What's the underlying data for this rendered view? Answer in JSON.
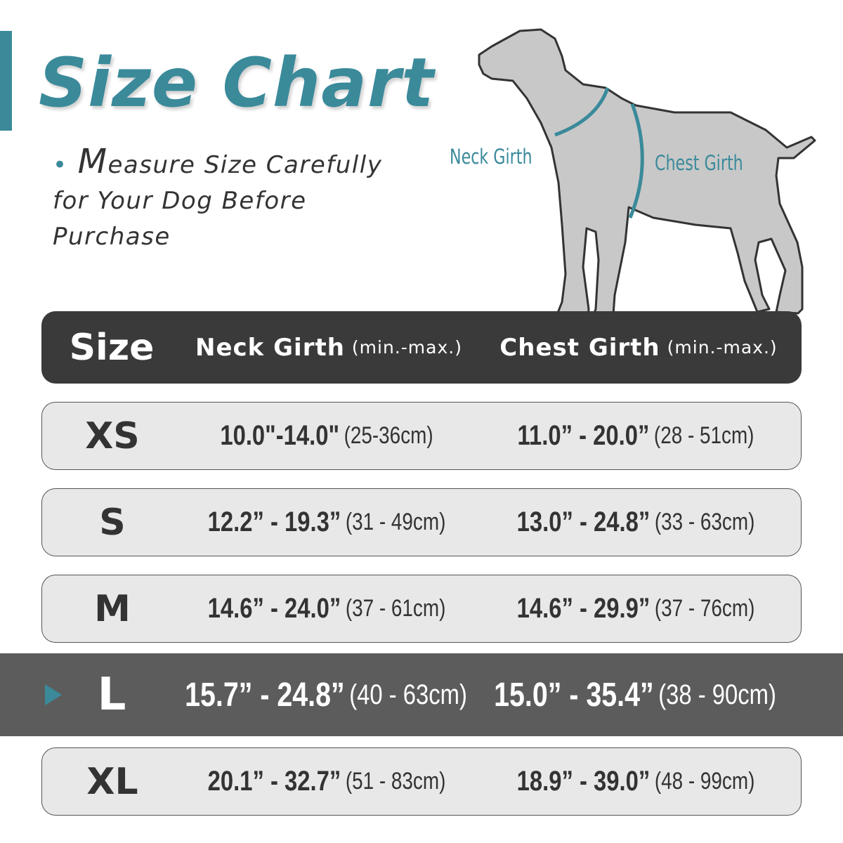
{
  "title": "Size Chart",
  "note": {
    "first_letter": "M",
    "text": "easure Size Carefully for Your Dog Before Purchase"
  },
  "diagram": {
    "neck_label": "Neck Girth",
    "chest_label": "Chest Girth"
  },
  "colors": {
    "accent": "#3a8a9a",
    "header_bg": "#3a3a3a",
    "row_bg": "#e8e8e8",
    "selected_bg": "#5c5c5c"
  },
  "table": {
    "headers": {
      "size": "Size",
      "neck": "Neck Girth",
      "neck_sub": "(min.-max.)",
      "chest": "Chest Girth",
      "chest_sub": "(min.-max.)"
    },
    "rows": [
      {
        "size": "XS",
        "neck_in": "10.0\"-14.0\"",
        "neck_cm": "(25-36cm)",
        "chest_in": "11.0” - 20.0”",
        "chest_cm": "(28 - 51cm)"
      },
      {
        "size": "S",
        "neck_in": "12.2” - 19.3”",
        "neck_cm": "(31 - 49cm)",
        "chest_in": "13.0” - 24.8”",
        "chest_cm": "(33 - 63cm)"
      },
      {
        "size": "M",
        "neck_in": "14.6” - 24.0”",
        "neck_cm": "(37 - 61cm)",
        "chest_in": "14.6” - 29.9”",
        "chest_cm": "(37 - 76cm)"
      },
      {
        "size": "L",
        "neck_in": "15.7” - 24.8”",
        "neck_cm": "(40 - 63cm)",
        "chest_in": "15.0” - 35.4”",
        "chest_cm": "(38 - 90cm)",
        "selected": true
      },
      {
        "size": "XL",
        "neck_in": "20.1” - 32.7”",
        "neck_cm": "(51 - 83cm)",
        "chest_in": "18.9” - 39.0”",
        "chest_cm": "(48 - 99cm)"
      }
    ]
  }
}
